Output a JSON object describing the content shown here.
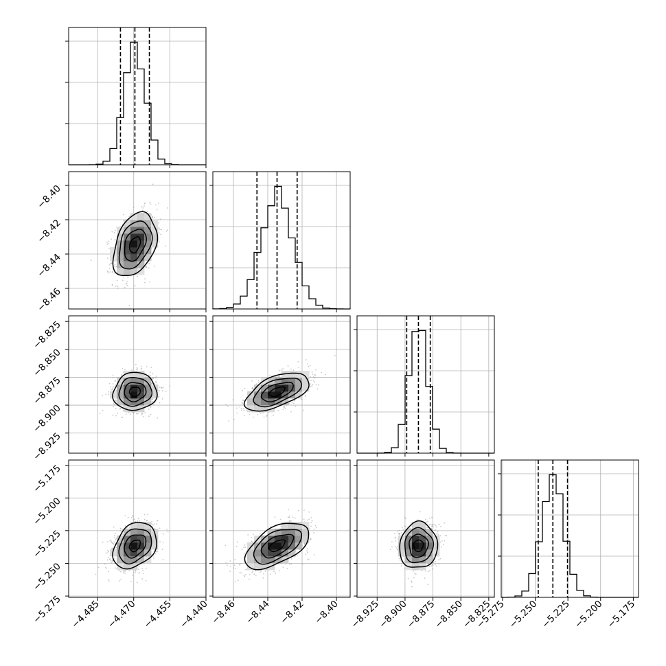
{
  "chart_data": {
    "type": "corner",
    "parameters": [
      {
        "index": 0,
        "range": [
          -4.497,
          -4.44
        ],
        "ticks": [
          -4.485,
          -4.47,
          -4.455,
          -4.44
        ],
        "tick_labels": [
          "−4.485",
          "−4.470",
          "−4.455",
          "−4.440"
        ],
        "quantiles": [
          -4.4755,
          -4.4695,
          -4.4635
        ]
      },
      {
        "index": 1,
        "range": [
          -8.472,
          -8.392
        ],
        "ticks": [
          -8.46,
          -8.44,
          -8.42,
          -8.4
        ],
        "tick_labels": [
          "−8.46",
          "−8.44",
          "−8.42",
          "−8.40"
        ],
        "quantiles": [
          -8.4463,
          -8.4346,
          -8.4229
        ]
      },
      {
        "index": 2,
        "range": [
          -8.943,
          -8.82
        ],
        "ticks": [
          -8.925,
          -8.9,
          -8.875,
          -8.85,
          -8.825
        ],
        "tick_labels": [
          "−8.925",
          "−8.900",
          "−8.875",
          "−8.850",
          "−8.825"
        ],
        "quantiles": [
          -8.8985,
          -8.888,
          -8.8774
        ]
      },
      {
        "index": 3,
        "range": [
          -5.276,
          -5.171
        ],
        "ticks": [
          -5.275,
          -5.25,
          -5.225,
          -5.2,
          -5.175
        ],
        "tick_labels": [
          "−5.275",
          "−5.250",
          "−5.225",
          "−5.200",
          "−5.175"
        ],
        "quantiles": [
          -5.2477,
          -5.2365,
          -5.2253
        ]
      }
    ],
    "correlations": [
      {
        "row": 1,
        "col": 0,
        "rho": 0.35
      },
      {
        "row": 2,
        "col": 0,
        "rho": 0.05
      },
      {
        "row": 2,
        "col": 1,
        "rho": 0.55
      },
      {
        "row": 3,
        "col": 0,
        "rho": 0.3
      },
      {
        "row": 3,
        "col": 1,
        "rho": 0.55
      },
      {
        "row": 3,
        "col": 2,
        "rho": 0.05
      }
    ],
    "sigmas": [
      0.0045,
      0.0093,
      0.0085,
      0.0088
    ],
    "histogram_bins": 20,
    "contour_levels": [
      0.5,
      1.0,
      1.5,
      2.0
    ],
    "grid": true,
    "style": {
      "line_color": "#000000",
      "grid_color": "#b0b0b0",
      "point_color": "#9a9a9a"
    }
  }
}
